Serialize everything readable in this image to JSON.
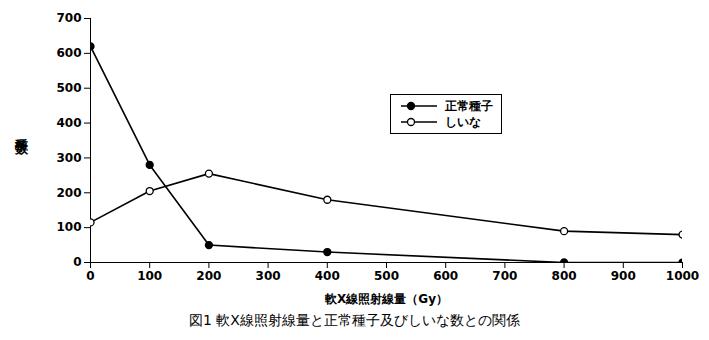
{
  "chart_data": {
    "type": "line",
    "title": "図1 軟X線照射線量と正常種子及びしいな数との関係",
    "x_label": "軟X線照射線量（Gy）",
    "y_label": "種子数",
    "x": [
      0,
      100,
      200,
      400,
      800,
      1000
    ],
    "series": [
      {
        "name": "正常種子",
        "color": "#000000",
        "marker": "circle",
        "values": [
          620,
          280,
          50,
          30,
          0,
          0
        ]
      },
      {
        "name": "しいな",
        "color": "#000000",
        "marker": "open-circle",
        "values": [
          115,
          205,
          255,
          180,
          90,
          80
        ]
      }
    ],
    "xlim": [
      0,
      1000
    ],
    "xticks": [
      0,
      100,
      200,
      300,
      400,
      500,
      600,
      700,
      800,
      900,
      1000
    ],
    "ylim": [
      0,
      700
    ],
    "yticks": [
      0,
      100,
      200,
      300,
      400,
      500,
      600,
      700
    ],
    "grid": false,
    "legend": "upper right"
  }
}
